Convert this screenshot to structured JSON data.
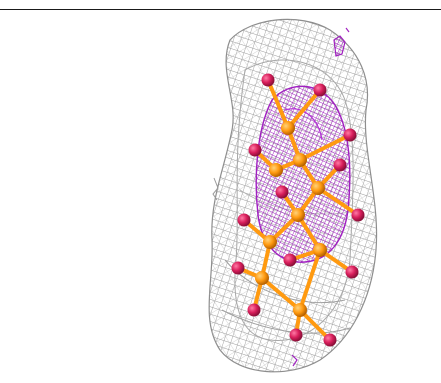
{
  "scene": {
    "background_color": "#ffffff",
    "rule_color": "#1a1a1a",
    "mesh_outer_color": "#9a9a9a",
    "mesh_inner_color": "#a020c0",
    "atom_colors": {
      "metal": "#ff9a10",
      "terminal": "#d81e5b"
    },
    "icons": [
      "gray-electron-density-mesh-icon",
      "magenta-electron-density-mesh-icon",
      "orange-metal-atom-icon",
      "crimson-ligand-atom-icon"
    ]
  }
}
